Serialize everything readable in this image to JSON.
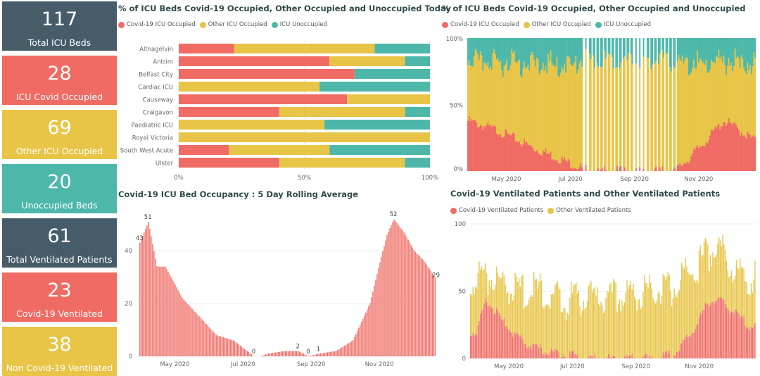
{
  "colors": {
    "covid": "#EF6B63",
    "other": "#E8C547",
    "unocc": "#4DB8AA",
    "dark": "#465C69"
  },
  "kpis": [
    {
      "value": "117",
      "label": "Total ICU Beds",
      "color": "#465C69"
    },
    {
      "value": "28",
      "label": "ICU Covid Occupied",
      "color": "#EF6B63"
    },
    {
      "value": "69",
      "label": "Other ICU Occupied",
      "color": "#E8C547"
    },
    {
      "value": "20",
      "label": "Unoccupied Beds",
      "color": "#4DB8AA"
    },
    {
      "value": "61",
      "label": "Total Ventilated Patients",
      "color": "#465C69"
    },
    {
      "value": "23",
      "label": "Covid-19 Ventilated",
      "color": "#EF6B63"
    },
    {
      "value": "38",
      "label": "Non Covid-19 Ventilated",
      "color": "#E8C547"
    }
  ],
  "panels": {
    "today": {
      "title": "% of ICU Beds Covid-19 Occupied, Other Occupied and Unoccupied Today",
      "legend": [
        "Covid-19 ICU Occupied",
        "Other ICU Occupied",
        "ICU Unoccupied"
      ]
    },
    "trend": {
      "title": "% of ICU Beds Covid-19 Occupied, Other Occupied and Unoccupied",
      "legend": [
        "Covid-19 ICU Occupied",
        "Other ICU Occupied",
        "ICU Unoccupied"
      ]
    },
    "rolling": {
      "title": "Covid-19 ICU Bed Occupancy : 5 Day Rolling Average"
    },
    "ventilated": {
      "title": "Covid-19 Ventilated Patients and Other Ventilated Patients",
      "legend": [
        "Covid-19 Ventilated Patients",
        "Other Ventilated Patients"
      ]
    }
  },
  "chart_data": [
    {
      "type": "bar",
      "orientation": "horizontal",
      "stacked": "100%",
      "title": "% of ICU Beds Covid-19 Occupied, Other Occupied and Unoccupied Today",
      "categories": [
        "Altnagelvin",
        "Antrim",
        "Belfast City",
        "Cardiac ICU",
        "Causeway",
        "Craigavon",
        "Paediatric ICU",
        "Royal Victoria",
        "South West Acute",
        "Ulster"
      ],
      "series": [
        {
          "name": "Covid-19 ICU Occupied",
          "values": [
            22,
            60,
            70,
            0,
            67,
            40,
            0,
            0,
            20,
            40
          ]
        },
        {
          "name": "Other ICU Occupied",
          "values": [
            56,
            30,
            0,
            56,
            33,
            50,
            58,
            100,
            40,
            50
          ]
        },
        {
          "name": "ICU Unoccupied",
          "values": [
            22,
            10,
            30,
            44,
            0,
            10,
            42,
            0,
            40,
            10
          ]
        }
      ],
      "xticks": [
        "0%",
        "50%",
        "100%"
      ],
      "xlim": [
        0,
        100
      ],
      "legend": "top-left"
    },
    {
      "type": "bar",
      "stacked": "100%",
      "title": "% of ICU Beds Covid-19 Occupied, Other Occupied and Unoccupied",
      "x_ticks": [
        "May 2020",
        "Jul 2020",
        "Sep 2020",
        "Nov 2020"
      ],
      "y_ticks": [
        "0%",
        "50%",
        "100%"
      ],
      "anchors": {
        "x_month": [
          3.0,
          4.0,
          5.0,
          6.0,
          6.6,
          7.0,
          8.0,
          9.0,
          9.5,
          10.0,
          11.0,
          11.9
        ],
        "covid_pct": [
          38,
          30,
          18,
          8,
          2,
          0,
          0,
          0,
          1,
          12,
          38,
          24
        ],
        "other_pct": [
          45,
          52,
          63,
          72,
          80,
          82,
          82,
          82,
          80,
          68,
          44,
          56
        ]
      },
      "legend": "top-left"
    },
    {
      "type": "bar",
      "title": "Covid-19 ICU Bed Occupancy : 5 Day Rolling Average",
      "x_ticks": [
        "May 2020",
        "Jul 2020",
        "Sep 2020",
        "Nov 2020"
      ],
      "ylim": [
        0,
        55
      ],
      "y_ticks": [
        0,
        20,
        40
      ],
      "anchors": {
        "x_month": [
          3.25,
          3.5,
          3.75,
          4.0,
          4.5,
          5.0,
          5.5,
          6.0,
          6.3,
          6.6,
          6.8,
          7.0,
          7.5,
          7.9,
          8.2,
          8.5,
          9.0,
          9.5,
          10.0,
          10.3,
          10.5,
          10.7,
          11.0,
          11.3,
          11.6,
          11.95
        ],
        "values": [
          43,
          51,
          34,
          34,
          22,
          15,
          8,
          6,
          3,
          0,
          0,
          1,
          2,
          2,
          0,
          1,
          2,
          6,
          20,
          36,
          46,
          52,
          47,
          40,
          36,
          29
        ]
      },
      "data_labels": [
        {
          "x_month": 3.25,
          "label": "43"
        },
        {
          "x_month": 3.5,
          "label": "51"
        },
        {
          "x_month": 6.6,
          "label": "0"
        },
        {
          "x_month": 7.9,
          "label": "2"
        },
        {
          "x_month": 8.2,
          "label": "0"
        },
        {
          "x_month": 8.5,
          "label": "1"
        },
        {
          "x_month": 10.7,
          "label": "52"
        },
        {
          "x_month": 11.95,
          "label": "29"
        }
      ]
    },
    {
      "type": "bar",
      "stacked": true,
      "title": "Covid-19 Ventilated Patients and Other Ventilated Patients",
      "x_ticks": [
        "May 2020",
        "Jul 2020",
        "Sep 2020",
        "Nov 2020"
      ],
      "ylim": [
        0,
        100
      ],
      "y_ticks": [
        0,
        50,
        100
      ],
      "anchors": {
        "x_month": [
          3.2,
          3.5,
          4.0,
          4.5,
          5.0,
          5.5,
          6.0,
          6.6,
          7.0,
          8.0,
          9.0,
          9.5,
          10.0,
          10.5,
          10.8,
          11.0,
          11.5,
          11.9
        ],
        "covid": [
          20,
          44,
          28,
          15,
          8,
          5,
          3,
          0,
          0,
          0,
          0,
          5,
          20,
          42,
          44,
          40,
          30,
          23
        ],
        "other": [
          38,
          20,
          27,
          35,
          42,
          42,
          40,
          44,
          44,
          47,
          50,
          50,
          45,
          38,
          40,
          33,
          33,
          38
        ]
      },
      "legend": "top-left"
    }
  ]
}
